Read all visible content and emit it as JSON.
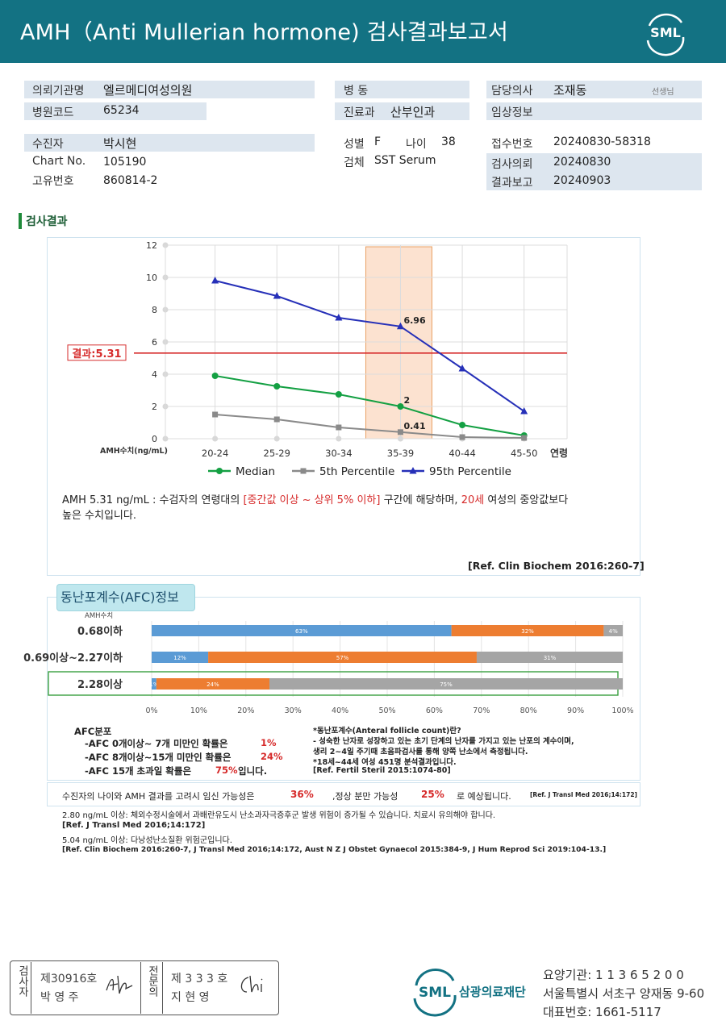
{
  "header": {
    "title": "AMH（Anti Mullerian hormone) 검사결과보고서",
    "logo_text": "SML"
  },
  "info": {
    "institution_label": "의뢰기관명",
    "institution": "엘르메디여성의원",
    "hospital_code_label": "병원코드",
    "hospital_code": "65234",
    "ward_label": "병  동",
    "ward": "",
    "department_label": "진료과",
    "department": "산부인과",
    "doctor_label": "담당의사",
    "doctor": "조재동",
    "doctor_suffix": "선생님",
    "clinical_label": "임상정보",
    "clinical": "",
    "patient_label": "수진자",
    "patient": "박시현",
    "chart_label": "Chart No.",
    "chart": "105190",
    "id_label": "고유번호",
    "id": "860814-2",
    "sex_label": "성별",
    "sex": "F",
    "age_label": "나이",
    "age": "38",
    "specimen_label": "검체",
    "specimen": "SST Serum",
    "receipt_label": "접수번호",
    "receipt": "20240830-58318",
    "request_label": "검사의뢰",
    "request": "20240830",
    "report_label": "결과보고",
    "report": "20240903"
  },
  "section_title": "검사결과",
  "chart_data": {
    "type": "line",
    "categories": [
      "20-24",
      "25-29",
      "30-34",
      "35-39",
      "40-44",
      "45-50"
    ],
    "xlabel": "연령",
    "ylabel": "AMH수치(ng/mL)",
    "ylim": [
      0,
      12
    ],
    "yticks": [
      0,
      2,
      4,
      6,
      8,
      10,
      12
    ],
    "series": [
      {
        "name": "Median",
        "color": "#14a043",
        "marker": "circle",
        "values": [
          3.9,
          3.25,
          2.75,
          2.0,
          0.85,
          0.2
        ]
      },
      {
        "name": "5th Percentile",
        "color": "#8a8a8a",
        "marker": "square",
        "values": [
          1.5,
          1.2,
          0.7,
          0.41,
          0.1,
          0.05
        ]
      },
      {
        "name": "95th Percentile",
        "color": "#2630b8",
        "marker": "triangle",
        "values": [
          9.8,
          8.85,
          7.5,
          6.96,
          4.35,
          1.7
        ]
      }
    ],
    "data_labels": [
      {
        "text": "6.96",
        "series": 2,
        "index": 3
      },
      {
        "text": "2",
        "series": 0,
        "index": 3
      },
      {
        "text": "0.41",
        "series": 1,
        "index": 3
      }
    ],
    "highlight_category": "35-39",
    "result_line": {
      "value": 5.31,
      "label": "결과:5.31",
      "color": "#d62a2a"
    },
    "grid": true,
    "legend_position": "bottom"
  },
  "interpretation": {
    "p1": "AMH  5.31 ng/mL : 수검자의 연령대의 ",
    "p2": "[중간값 이상 ~ 상위 5% 이하]",
    "p3": "  구간에 해당하며, ",
    "p4": "20세",
    "p5": " 여성의 중앙값보다",
    "line2": "높은 수치입니다.",
    "ref": "[Ref. Clin Biochem 2016:260-7]"
  },
  "afc": {
    "tab": "동난포계수(AFC)정보",
    "amh_header": "AMH수치",
    "rows": [
      {
        "label": "0.68이하",
        "segments": [
          63,
          32,
          4
        ],
        "texts": [
          "63%",
          "32%",
          "4%"
        ]
      },
      {
        "label": "0.69이상~2.27이하",
        "segments": [
          12,
          57,
          31
        ],
        "texts": [
          "12%",
          "57%",
          "31%"
        ]
      },
      {
        "label": "2.28이상",
        "segments": [
          1,
          24,
          75
        ],
        "texts": [
          "1%",
          "24%",
          "75%"
        ]
      }
    ],
    "colors": [
      "#5b9bd5",
      "#ed7d31",
      "#a5a5a5"
    ],
    "axis": [
      "0%",
      "10%",
      "20%",
      "30%",
      "40%",
      "50%",
      "60%",
      "70%",
      "80%",
      "90%",
      "100%"
    ],
    "dist_title": "AFC분포",
    "dist": [
      {
        "text": "-AFC  0개이상~ 7개 미만인 확률은",
        "pct": "1%"
      },
      {
        "text": "-AFC  8개이상~15개 미만인 확률은",
        "pct": "24%"
      },
      {
        "text": "-AFC  15개 초과일 확률은",
        "pct": "75%",
        "tail": " 입니다."
      }
    ],
    "def1": "*동난포계수(Anteral follicle count)란?",
    "def2": "- 성숙한 난자로 성장하고 있는 초기 단계의 난자를 가지고 있는 난포의 계수이며,",
    "def3": "  생리 2~4일 주기때 초음파검사를 통해 양쪽 난소에서 측정됩니다.",
    "def4": "*18세~44세 여성 451명 분석결과입니다.",
    "def5": "[Ref. Fertil Steril 2015:1074-80]"
  },
  "probability": {
    "t1": "수진자의 나이와 AMH 결과를 고려시 임신 가능성은",
    "v1": "36%",
    "t2": ",정상 분만 가능성",
    "v2": "25%",
    "t3": "로 예상됩니다.",
    "ref": "[Ref. J Transl Med 2016;14:172]"
  },
  "notes": {
    "n1": "2.80  ng/mL  이상: 체외수정시술에서 과배란유도시 난소과자극증후군 발생 위험이 증가될 수 있습니다. 치료시 유의해야 합니다.",
    "n2": "[Ref. J Transl Med 2016;14:172]",
    "n3": "5.04  ng/mL  이상: 다낭성난소질환 위험군입니다.",
    "n4": "[Ref. Clin Biochem 2016:260-7, J Transl Med 2016;14:172, Aust N Z J Obstet Gynaecol 2015:384-9, J Hum Reprod Sci 2019:104-13.]"
  },
  "footer": {
    "examiner_label": "검사자",
    "examiner_no": "제30916호",
    "examiner_name": "박 영 주",
    "specialist_label": "전문의",
    "specialist_no": "제 3 3 3 호",
    "specialist_name": "지 현 영",
    "org_logo": "SML",
    "org_name": "삼광의료재단",
    "code": "요양기관: 1 1 3 6 5 2 0 0",
    "address": "서울특별시 서초구 양재동 9-60",
    "phone": "대표번호: 1661-5117"
  }
}
